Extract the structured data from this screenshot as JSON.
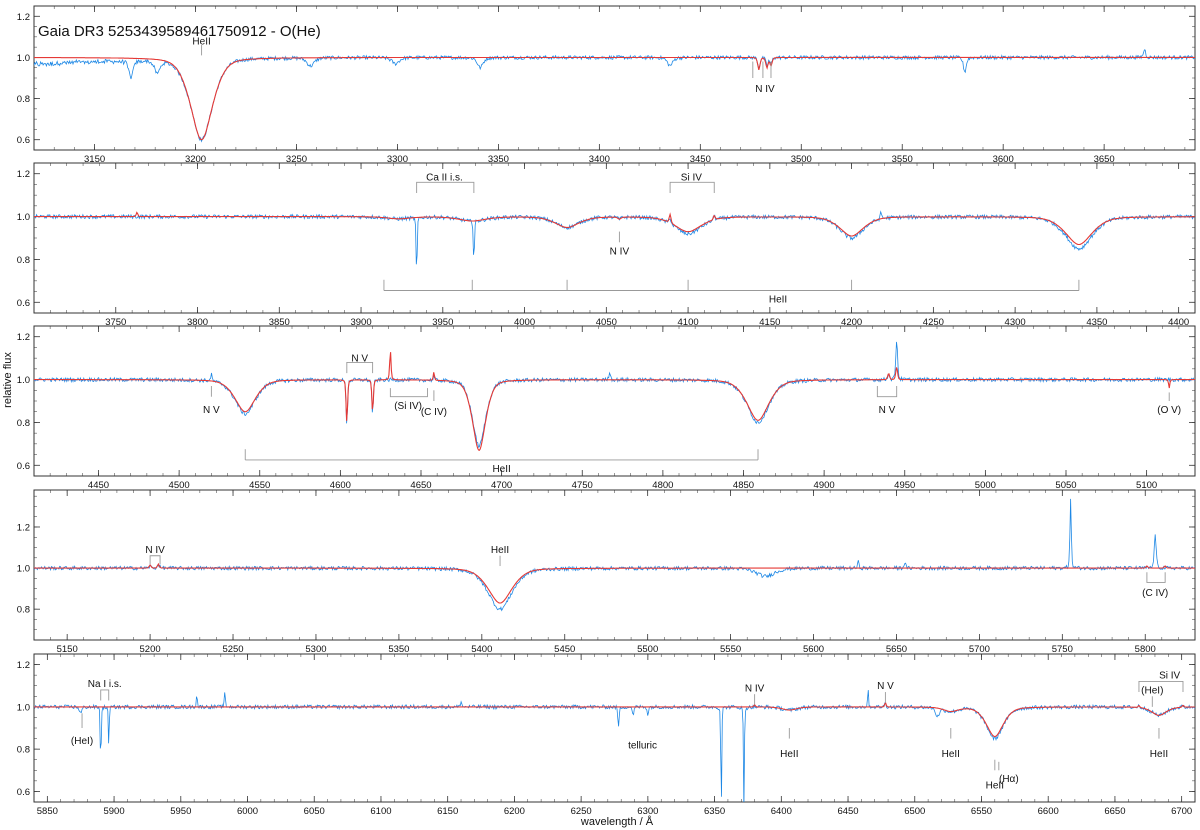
{
  "title": "Gaia DR3 5253439589461750912 - O(He)",
  "ylabel": "relative flux",
  "xlabel": "wavelength / Å",
  "colors": {
    "observed": "#1e88e5",
    "model": "#e53935",
    "marker": "#999999",
    "frame": "#333333"
  },
  "chart_data": [
    {
      "type": "line",
      "panel": 1,
      "xlim": [
        3120,
        3695
      ],
      "ylim": [
        0.55,
        1.25
      ],
      "xticks": [
        3150,
        3200,
        3250,
        3300,
        3350,
        3400,
        3450,
        3500,
        3550,
        3600,
        3650
      ],
      "yticks": [
        0.6,
        0.8,
        1.0,
        1.2
      ],
      "series": [],
      "lines": [
        {
          "center": 3203,
          "depth": 0.4,
          "width": 6.0,
          "obs": 0.4,
          "label": "HeII"
        },
        {
          "center": 3479,
          "depth": 0.06,
          "width": 0.6,
          "obs": 0.05
        },
        {
          "center": 3483,
          "depth": 0.05,
          "width": 0.6,
          "obs": 0.04
        },
        {
          "center": 3485,
          "depth": 0.04,
          "width": 0.6,
          "obs": 0.03
        }
      ],
      "obs_extra": [
        {
          "center": 3168,
          "depth": 0.08,
          "width": 1.2
        },
        {
          "center": 3181,
          "depth": 0.06,
          "width": 1.5
        },
        {
          "center": 3257,
          "depth": 0.04,
          "width": 2.0
        },
        {
          "center": 3299,
          "depth": 0.03,
          "width": 2.0
        },
        {
          "center": 3341,
          "depth": 0.05,
          "width": 1.5
        },
        {
          "center": 3435,
          "depth": 0.04,
          "width": 1.5
        },
        {
          "center": 3581,
          "depth": 0.07,
          "width": 0.8
        },
        {
          "center": 3670,
          "depth": -0.04,
          "width": 0.6
        }
      ],
      "obs_slope": {
        "x0": 3120,
        "x1": 3200,
        "dy": -0.04
      },
      "annotations": [
        {
          "text": "HeII",
          "x": 3203,
          "y": 1.08,
          "tick_from": 1.06,
          "tick_to": 1.01,
          "pos": "above"
        },
        {
          "text": "N IV",
          "x": 3482,
          "y": 0.85,
          "tick_from": 0.98,
          "tick_to": 0.9,
          "pos": "below",
          "ticks": [
            3476,
            3481,
            3485
          ]
        }
      ]
    },
    {
      "type": "line",
      "panel": 2,
      "xlim": [
        3700,
        4410
      ],
      "ylim": [
        0.55,
        1.25
      ],
      "xticks": [
        3750,
        3800,
        3850,
        3900,
        3950,
        4000,
        4050,
        4100,
        4150,
        4200,
        4250,
        4300,
        4350,
        4400
      ],
      "yticks": [
        0.6,
        0.8,
        1.0,
        1.2
      ],
      "lines": [
        {
          "center": 3923,
          "depth": 0.01,
          "width": 8.0,
          "obs": 0.01
        },
        {
          "center": 3968,
          "depth": 0.02,
          "width": 9.0,
          "obs": 0.02
        },
        {
          "center": 4026,
          "depth": 0.05,
          "width": 8.0,
          "obs": 0.05
        },
        {
          "center": 4100,
          "depth": 0.07,
          "width": 9.0,
          "obs": 0.08
        },
        {
          "center": 4200,
          "depth": 0.09,
          "width": 8.0,
          "obs": 0.1
        },
        {
          "center": 4339,
          "depth": 0.13,
          "width": 9.0,
          "obs": 0.15
        },
        {
          "center": 4058,
          "depth": 0.01,
          "width": 1.0,
          "obs": 0.01
        }
      ],
      "obs_extra": [
        {
          "center": 3934,
          "depth": 0.29,
          "width": 0.35
        },
        {
          "center": 3969,
          "depth": 0.2,
          "width": 0.35
        },
        {
          "center": 4089,
          "depth": -0.03,
          "width": 0.6
        },
        {
          "center": 4116,
          "depth": -0.02,
          "width": 0.6
        },
        {
          "center": 4218,
          "depth": -0.03,
          "width": 0.5
        }
      ],
      "model_extra": [
        {
          "center": 4089,
          "depth": -0.04,
          "width": 0.6
        },
        {
          "center": 4116,
          "depth": -0.02,
          "width": 0.6
        },
        {
          "center": 3763,
          "depth": -0.02,
          "width": 0.5
        }
      ],
      "annotations": [
        {
          "text": "Ca II i.s.",
          "x": 3951,
          "y": 1.185,
          "bracket": [
            3934,
            3969
          ],
          "bracket_top": 1.16,
          "bracket_bottom": 1.11,
          "pos": "above"
        },
        {
          "text": "Si IV",
          "x": 4102,
          "y": 1.185,
          "bracket": [
            4089,
            4116
          ],
          "bracket_top": 1.16,
          "bracket_bottom": 1.11,
          "pos": "above"
        },
        {
          "text": "N IV",
          "x": 4058,
          "y": 0.84,
          "tick_from": 0.93,
          "tick_to": 0.88,
          "pos": "below"
        },
        {
          "text": "HeII",
          "x": 4155,
          "y": 0.615,
          "hbar": [
            3914,
            4339
          ],
          "hbar_y": 0.655,
          "hbar_ticks": [
            3914,
            3968,
            4026,
            4100,
            4200,
            4339
          ],
          "tick_top": 0.705,
          "pos": "below"
        }
      ]
    },
    {
      "type": "line",
      "panel": 3,
      "xlim": [
        4410,
        5130
      ],
      "ylim": [
        0.55,
        1.25
      ],
      "xticks": [
        4450,
        4500,
        4550,
        4600,
        4650,
        4700,
        4750,
        4800,
        4850,
        4900,
        4950,
        5000,
        5050,
        5100
      ],
      "yticks": [
        0.6,
        0.8,
        1.0,
        1.2
      ],
      "lines": [
        {
          "center": 4541,
          "depth": 0.15,
          "width": 7.0,
          "obs": 0.16
        },
        {
          "center": 4686,
          "depth": 0.33,
          "width": 4.5,
          "obs": 0.31
        },
        {
          "center": 4859,
          "depth": 0.19,
          "width": 7.5,
          "obs": 0.2
        },
        {
          "center": 4604,
          "depth": 0.2,
          "width": 0.5,
          "obs": 0.21
        },
        {
          "center": 4620,
          "depth": 0.15,
          "width": 0.5,
          "obs": 0.16
        },
        {
          "center": 4631,
          "depth": -0.14,
          "width": 0.45,
          "obs": 0.0
        },
        {
          "center": 4658,
          "depth": -0.04,
          "width": 0.4,
          "obs": -0.02
        },
        {
          "center": 4945,
          "depth": -0.06,
          "width": 0.6,
          "obs": -0.19
        },
        {
          "center": 4940,
          "depth": -0.03,
          "width": 0.6,
          "obs": -0.03
        },
        {
          "center": 5114,
          "depth": 0.04,
          "width": 0.4,
          "obs": 0.0
        }
      ],
      "obs_extra": [
        {
          "center": 4520,
          "depth": -0.03,
          "width": 0.5
        },
        {
          "center": 4767,
          "depth": -0.04,
          "width": 0.5
        }
      ],
      "annotations": [
        {
          "text": "N V",
          "x": 4520,
          "y": 0.86,
          "tick_from": 0.97,
          "tick_to": 0.92,
          "pos": "below"
        },
        {
          "text": "N V",
          "x": 4612,
          "y": 1.1,
          "bracket": [
            4604,
            4620
          ],
          "bracket_top": 1.08,
          "bracket_bottom": 1.03,
          "pos": "above"
        },
        {
          "text": "(Si IV)",
          "x": 4642,
          "y": 0.88,
          "bracket_down": [
            4631,
            4654
          ],
          "bracket_top": 0.96,
          "bracket_bottom": 0.92,
          "pos": "below"
        },
        {
          "text": "(C IV)",
          "x": 4658,
          "y": 0.85,
          "tick_from": 0.95,
          "tick_to": 0.9,
          "pos": "below"
        },
        {
          "text": "N V",
          "x": 4939,
          "y": 0.86,
          "bracket_down": [
            4933,
            4945
          ],
          "bracket_top": 0.97,
          "bracket_bottom": 0.92,
          "pos": "below"
        },
        {
          "text": "(O V)",
          "x": 5114,
          "y": 0.86,
          "tick_from": 0.94,
          "tick_to": 0.9,
          "pos": "below"
        },
        {
          "text": "HeII",
          "x": 4700,
          "y": 0.585,
          "hbar": [
            4541,
            4859
          ],
          "hbar_y": 0.625,
          "hbar_ticks": [
            4541,
            4859
          ],
          "tick_top": 0.675,
          "pos": "below"
        }
      ]
    },
    {
      "type": "line",
      "panel": 4,
      "xlim": [
        5130,
        5830
      ],
      "ylim": [
        0.65,
        1.38
      ],
      "xticks": [
        5150,
        5200,
        5250,
        5300,
        5350,
        5400,
        5450,
        5500,
        5550,
        5600,
        5650,
        5700,
        5750,
        5800
      ],
      "yticks": [
        0.8,
        1.0,
        1.2
      ],
      "lines": [
        {
          "center": 5411,
          "depth": 0.17,
          "width": 8.0,
          "obs": 0.2
        },
        {
          "center": 5200,
          "depth": -0.015,
          "width": 0.6,
          "obs": -0.01
        },
        {
          "center": 5205,
          "depth": -0.02,
          "width": 0.6,
          "obs": -0.02
        },
        {
          "center": 5801,
          "depth": -0.01,
          "width": 0.6,
          "obs": 0.0
        },
        {
          "center": 5812,
          "depth": -0.01,
          "width": 0.6,
          "obs": 0.0
        }
      ],
      "obs_extra": [
        {
          "center": 5755,
          "depth": -0.33,
          "width": 0.45
        },
        {
          "center": 5806,
          "depth": -0.17,
          "width": 0.6
        },
        {
          "center": 5571,
          "depth": 0.04,
          "width": 6.0
        },
        {
          "center": 5627,
          "depth": -0.03,
          "width": 0.5
        },
        {
          "center": 5655,
          "depth": -0.03,
          "width": 0.5
        }
      ],
      "annotations": [
        {
          "text": "N IV",
          "x": 5203,
          "y": 1.09,
          "bracket": [
            5200,
            5206
          ],
          "bracket_top": 1.06,
          "bracket_bottom": 1.02,
          "pos": "above"
        },
        {
          "text": "HeII",
          "x": 5411,
          "y": 1.09,
          "tick_from": 1.06,
          "tick_to": 1.01,
          "pos": "above"
        },
        {
          "text": "(C IV)",
          "x": 5806,
          "y": 0.88,
          "bracket_down": [
            5801,
            5812
          ],
          "bracket_top": 0.98,
          "bracket_bottom": 0.93,
          "pos": "below"
        }
      ]
    },
    {
      "type": "line",
      "panel": 5,
      "xlim": [
        5840,
        6710
      ],
      "ylim": [
        0.55,
        1.25
      ],
      "xticks": [
        5850,
        5900,
        5950,
        6000,
        6050,
        6100,
        6150,
        6200,
        6250,
        6300,
        6350,
        6400,
        6450,
        6500,
        6550,
        6600,
        6650,
        6700
      ],
      "yticks": [
        0.6,
        0.8,
        1.0,
        1.2
      ],
      "lines": [
        {
          "center": 6560,
          "depth": 0.14,
          "width": 7.0,
          "obs": 0.15
        },
        {
          "center": 6527,
          "depth": 0.02,
          "width": 6.0,
          "obs": 0.02
        },
        {
          "center": 6406,
          "depth": 0.015,
          "width": 6.0,
          "obs": 0.015
        },
        {
          "center": 6683,
          "depth": 0.04,
          "width": 6.0,
          "obs": 0.04
        },
        {
          "center": 6380,
          "depth": -0.01,
          "width": 0.6,
          "obs": 0.0
        },
        {
          "center": 6478,
          "depth": -0.02,
          "width": 0.6,
          "obs": -0.02
        },
        {
          "center": 6668,
          "depth": -0.01,
          "width": 0.6,
          "obs": -0.01
        },
        {
          "center": 6701,
          "depth": -0.01,
          "width": 0.6,
          "obs": -0.01
        }
      ],
      "obs_extra": [
        {
          "center": 5890,
          "depth": 0.3,
          "width": 0.35
        },
        {
          "center": 5896,
          "depth": 0.18,
          "width": 0.35
        },
        {
          "center": 5875,
          "depth": 0.03,
          "width": 1.0
        },
        {
          "center": 6278,
          "depth": 0.1,
          "width": 0.5
        },
        {
          "center": 6289,
          "depth": 0.05,
          "width": 0.5
        },
        {
          "center": 6300,
          "depth": 0.04,
          "width": 0.5
        },
        {
          "center": 6355,
          "depth": 0.5,
          "width": 0.35
        },
        {
          "center": 6372,
          "depth": 0.5,
          "width": 0.35
        },
        {
          "center": 5962,
          "depth": -0.06,
          "width": 0.4
        },
        {
          "center": 5983,
          "depth": -0.07,
          "width": 0.4
        },
        {
          "center": 6465,
          "depth": -0.08,
          "width": 0.4
        },
        {
          "center": 6517,
          "depth": 0.04,
          "width": 1.5
        },
        {
          "center": 6160,
          "depth": -0.03,
          "width": 0.5
        }
      ],
      "annotations": [
        {
          "text": "Na I i.s.",
          "x": 5893,
          "y": 1.11,
          "bracket": [
            5890,
            5896
          ],
          "bracket_top": 1.08,
          "bracket_bottom": 1.03,
          "pos": "above"
        },
        {
          "text": "(HeI)",
          "x": 5876,
          "y": 0.84,
          "tick_from": 0.97,
          "tick_to": 0.9,
          "pos": "below"
        },
        {
          "text": "telluric",
          "x": 6296,
          "y": 0.82,
          "tick_from": 0.0,
          "tick_to": 0.0,
          "pos": "below",
          "no_tick": true
        },
        {
          "text": "N IV",
          "x": 6380,
          "y": 1.09,
          "tick_from": 1.06,
          "tick_to": 1.01,
          "pos": "above"
        },
        {
          "text": "N V",
          "x": 6478,
          "y": 1.1,
          "tick_from": 1.07,
          "tick_to": 1.02,
          "pos": "above"
        },
        {
          "text": "HeII",
          "x": 6406,
          "y": 0.78,
          "tick_from": 0.9,
          "tick_to": 0.85,
          "pos": "below"
        },
        {
          "text": "HeII",
          "x": 6527,
          "y": 0.78,
          "tick_from": 0.9,
          "tick_to": 0.85,
          "pos": "below"
        },
        {
          "text": "HeII",
          "x": 6560,
          "y": 0.63,
          "tick_from": 0.75,
          "tick_to": 0.7,
          "pos": "below"
        },
        {
          "text": "(Hα)",
          "x": 6563,
          "y": 0.66,
          "tick_from": 0.74,
          "tick_to": 0.7,
          "pos": "below",
          "dx": 10
        },
        {
          "text": "HeII",
          "x": 6683,
          "y": 0.78,
          "tick_from": 0.9,
          "tick_to": 0.85,
          "pos": "below"
        },
        {
          "text": "(HeI)",
          "x": 6678,
          "y": 1.08,
          "tick_from": 1.05,
          "tick_to": 1.0,
          "pos": "above"
        },
        {
          "text": "Si IV",
          "x": 6688,
          "y": 1.15,
          "bracket": [
            6668,
            6701
          ],
          "bracket_top": 1.12,
          "bracket_bottom": 1.07,
          "pos": "above",
          "dx": 4
        }
      ]
    }
  ]
}
